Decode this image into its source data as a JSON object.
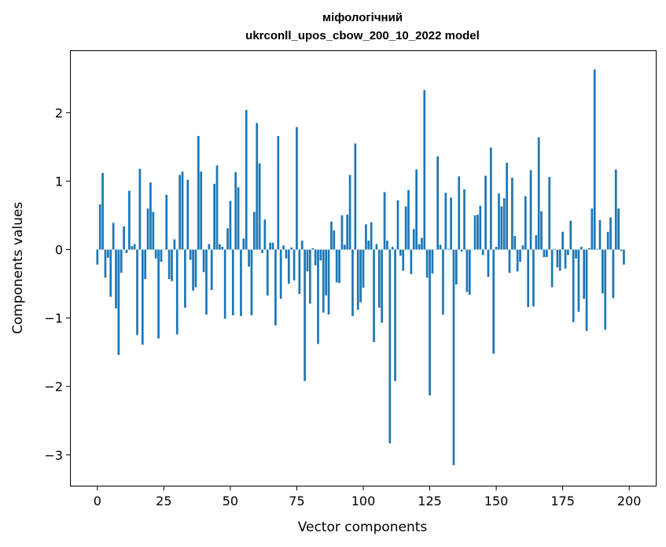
{
  "chart_data": {
    "type": "bar",
    "title_line1": "міфологічний",
    "title_line2": "ukrconll_upos_cbow_200_10_2022 model",
    "xlabel": "Vector components",
    "ylabel": "Components values",
    "xlim": [
      -10,
      210
    ],
    "ylim": [
      -3.45,
      2.9
    ],
    "xticks": [
      0,
      25,
      50,
      75,
      100,
      125,
      150,
      175,
      200
    ],
    "xtick_labels": [
      "0",
      "25",
      "50",
      "75",
      "100",
      "125",
      "150",
      "175",
      "200"
    ],
    "yticks": [
      -3,
      -2,
      -1,
      0,
      1,
      2
    ],
    "ytick_labels": [
      "−3",
      "−2",
      "−1",
      "0",
      "1",
      "2"
    ],
    "grid": false,
    "color": "#1f77b4",
    "values": [
      -0.22,
      0.66,
      1.12,
      -0.41,
      -0.12,
      -0.69,
      0.39,
      -0.86,
      -1.54,
      -0.34,
      0.34,
      -0.05,
      0.86,
      0.05,
      0.08,
      -1.25,
      1.18,
      -1.39,
      -0.43,
      0.6,
      0.98,
      0.55,
      -0.13,
      -1.3,
      -0.18,
      0.0,
      0.8,
      -0.43,
      -0.46,
      0.15,
      -1.24,
      1.09,
      1.14,
      -0.85,
      1.02,
      -0.15,
      -0.6,
      -0.55,
      1.66,
      1.14,
      -0.33,
      -0.95,
      0.08,
      -0.59,
      0.96,
      1.23,
      0.08,
      0.04,
      -1.01,
      0.31,
      0.71,
      -0.96,
      1.13,
      0.91,
      -0.97,
      0.16,
      2.04,
      -0.25,
      -0.96,
      0.55,
      1.85,
      1.26,
      -0.05,
      0.44,
      -0.67,
      0.1,
      0.1,
      -1.11,
      1.66,
      -0.72,
      0.06,
      -0.13,
      -0.5,
      0.03,
      -0.45,
      1.79,
      -0.65,
      0.13,
      -1.92,
      -0.32,
      -0.79,
      0.02,
      -0.23,
      -1.38,
      -0.16,
      -0.92,
      -0.67,
      -0.95,
      0.41,
      0.28,
      -0.48,
      -0.49,
      0.5,
      0.07,
      0.51,
      1.09,
      -0.97,
      1.55,
      -0.88,
      -0.77,
      -0.56,
      0.37,
      0.13,
      0.4,
      -1.35,
      0.08,
      -0.85,
      -1.07,
      0.84,
      0.13,
      -2.83,
      0.04,
      -1.92,
      0.72,
      -0.09,
      -0.31,
      0.63,
      0.87,
      -0.36,
      0.3,
      1.17,
      0.08,
      0.17,
      2.33,
      -0.41,
      -2.13,
      -0.35,
      0.0,
      1.36,
      0.07,
      -0.95,
      0.83,
      0.01,
      0.76,
      -3.15,
      -0.51,
      1.07,
      -0.03,
      0.88,
      -0.62,
      -0.66,
      0.0,
      0.5,
      0.51,
      0.64,
      -0.08,
      1.08,
      -0.4,
      1.49,
      -1.52,
      0.04,
      0.82,
      0.63,
      0.75,
      1.27,
      -0.34,
      1.05,
      0.2,
      -0.32,
      -0.18,
      0.06,
      0.78,
      -0.84,
      1.16,
      -0.83,
      0.21,
      1.64,
      0.56,
      -0.11,
      -0.11,
      1.06,
      -0.55,
      0.01,
      -0.26,
      -0.31,
      0.26,
      -0.28,
      -0.08,
      0.42,
      -1.06,
      -0.13,
      -0.91,
      0.04,
      -0.72,
      -1.19,
      0.02,
      0.6,
      2.63,
      0.01,
      0.43,
      -0.64,
      -1.17,
      0.26,
      0.47,
      -0.71,
      1.17,
      0.6,
      -0.02,
      -0.22
    ]
  }
}
